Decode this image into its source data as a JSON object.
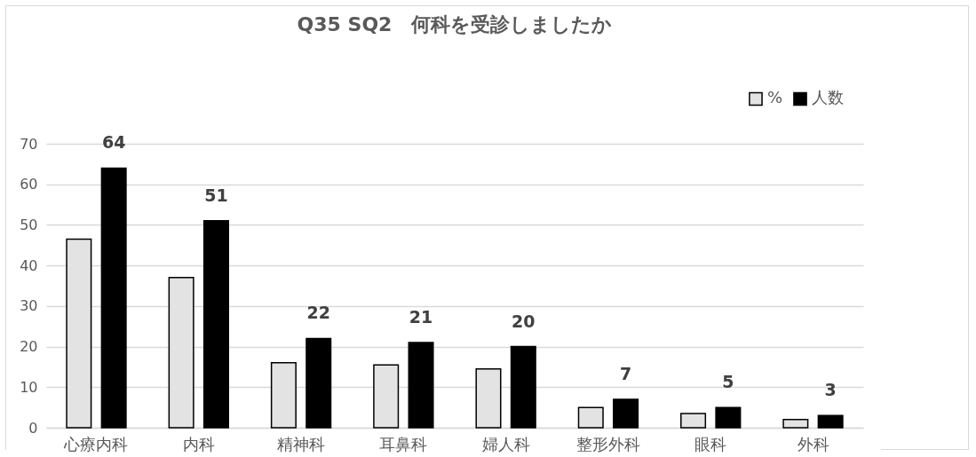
{
  "chart_data": {
    "type": "bar",
    "title": "Q35 SQ2　何科を受診しましたか",
    "categories": [
      "心療内科",
      "内科",
      "精神科",
      "耳鼻科",
      "婦人科",
      "整形外科",
      "眼科",
      "外科"
    ],
    "series": [
      {
        "name": "%",
        "color": "#e3e3e3",
        "values": [
          46.5,
          37,
          16,
          15.5,
          14.5,
          5,
          3.5,
          2
        ]
      },
      {
        "name": "人数",
        "color": "#000000",
        "values": [
          64,
          51,
          22,
          21,
          20,
          7,
          5,
          3
        ],
        "value_labels": [
          "64",
          "51",
          "22",
          "21",
          "20",
          "7",
          "5",
          "3"
        ]
      }
    ],
    "ylim": [
      0,
      70
    ],
    "yticks": [
      0,
      10,
      20,
      30,
      40,
      50,
      60,
      70
    ],
    "grid": "y",
    "legend": "top right"
  }
}
